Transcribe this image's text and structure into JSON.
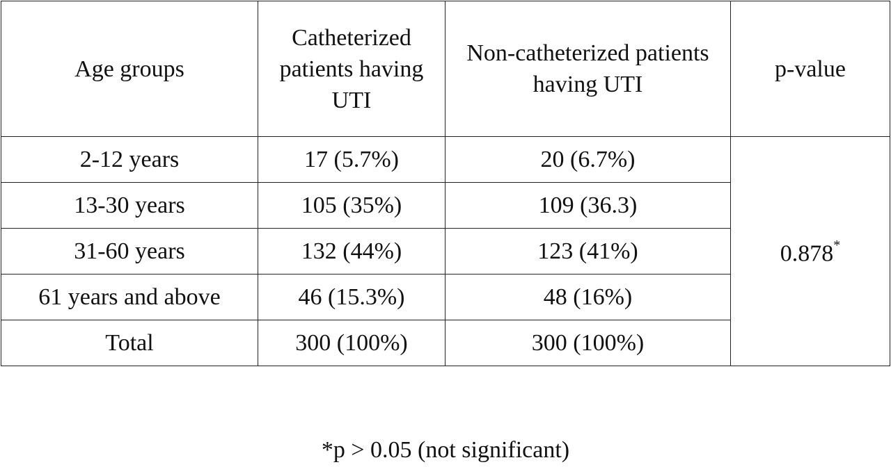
{
  "table": {
    "headers": {
      "age_groups": "Age groups",
      "catheterized": "Catheterized patients having UTI",
      "non_catheterized": "Non-catheterized patients having UTI",
      "p_value": "p-value"
    },
    "rows": [
      {
        "age": "2-12 years",
        "cath": "17 (5.7%)",
        "noncath": "20 (6.7%)"
      },
      {
        "age": "13-30 years",
        "cath": "105 (35%)",
        "noncath": "109 (36.3)"
      },
      {
        "age": "31-60 years",
        "cath": "132 (44%)",
        "noncath": "123 (41%)"
      },
      {
        "age": "61 years and above",
        "cath": "46 (15.3%)",
        "noncath": "48 (16%)"
      },
      {
        "age": "Total",
        "cath": "300 (100%)",
        "noncath": "300 (100%)"
      }
    ],
    "p_value": "0.878",
    "p_value_mark": "*"
  },
  "footnote": "*p > 0.05 (not significant)"
}
